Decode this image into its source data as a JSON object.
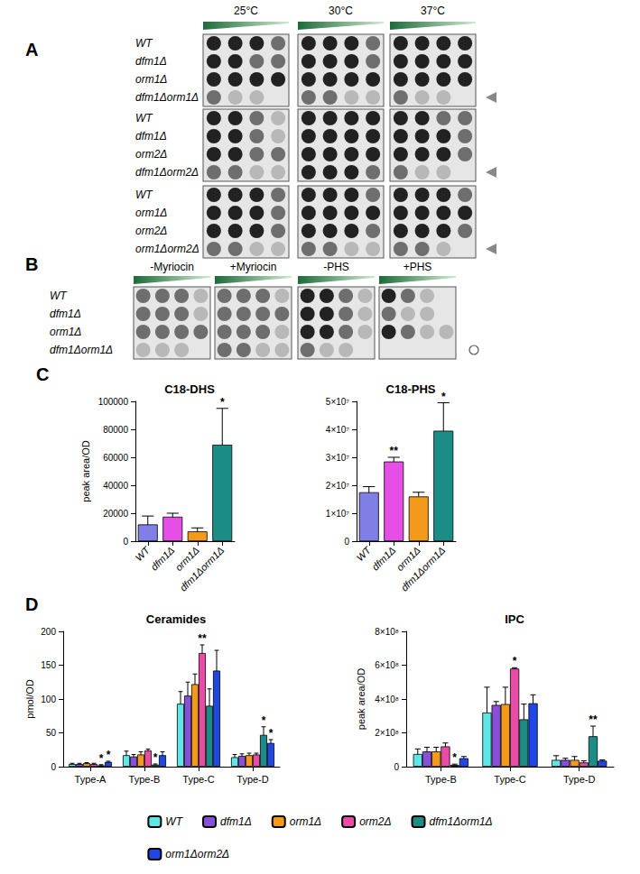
{
  "spot_assays": [
    {
      "panel": "A",
      "columns": [
        "25°C",
        "30°C",
        "37°C"
      ],
      "marker": "triangle",
      "blocks": [
        {
          "rows": [
            {
              "label": "WT",
              "growth": [
                [
                  3,
                  3,
                  3,
                  2
                ],
                [
                  3,
                  3,
                  3,
                  2
                ],
                [
                  3,
                  3,
                  3,
                  3
                ]
              ]
            },
            {
              "label": "dfm1Δ",
              "growth": [
                [
                  3,
                  3,
                  2,
                  2
                ],
                [
                  3,
                  3,
                  3,
                  2
                ],
                [
                  3,
                  3,
                  3,
                  3
                ]
              ]
            },
            {
              "label": "orm1Δ",
              "growth": [
                [
                  3,
                  3,
                  3,
                  3
                ],
                [
                  3,
                  3,
                  3,
                  3
                ],
                [
                  3,
                  3,
                  3,
                  3
                ]
              ]
            },
            {
              "label": "dfm1Δorm1Δ",
              "marked": true,
              "growth": [
                [
                  2,
                  1,
                  1,
                  0
                ],
                [
                  2,
                  2,
                  1,
                  1
                ],
                [
                  2,
                  1,
                  1,
                  0
                ]
              ]
            }
          ]
        },
        {
          "rows": [
            {
              "label": "WT",
              "growth": [
                [
                  3,
                  3,
                  2,
                  1
                ],
                [
                  3,
                  3,
                  3,
                  3
                ],
                [
                  3,
                  3,
                  2,
                  2
                ]
              ]
            },
            {
              "label": "dfm1Δ",
              "growth": [
                [
                  3,
                  3,
                  2,
                  1
                ],
                [
                  3,
                  3,
                  3,
                  3
                ],
                [
                  3,
                  3,
                  3,
                  2
                ]
              ]
            },
            {
              "label": "orm2Δ",
              "growth": [
                [
                  3,
                  3,
                  2,
                  2
                ],
                [
                  3,
                  3,
                  3,
                  3
                ],
                [
                  3,
                  3,
                  3,
                  2
                ]
              ]
            },
            {
              "label": "dfm1Δorm2Δ",
              "marked": true,
              "growth": [
                [
                  2,
                  2,
                  1,
                  1
                ],
                [
                  3,
                  3,
                  3,
                  2
                ],
                [
                  2,
                  1,
                  1,
                  0
                ]
              ]
            }
          ]
        },
        {
          "rows": [
            {
              "label": "WT",
              "growth": [
                [
                  3,
                  3,
                  3,
                  2
                ],
                [
                  3,
                  3,
                  3,
                  2
                ],
                [
                  3,
                  3,
                  3,
                  2
                ]
              ]
            },
            {
              "label": "orm1Δ",
              "growth": [
                [
                  3,
                  3,
                  3,
                  2
                ],
                [
                  3,
                  3,
                  3,
                  3
                ],
                [
                  3,
                  3,
                  3,
                  3
                ]
              ]
            },
            {
              "label": "orm2Δ",
              "growth": [
                [
                  3,
                  3,
                  3,
                  2
                ],
                [
                  3,
                  3,
                  3,
                  2
                ],
                [
                  3,
                  3,
                  3,
                  2
                ]
              ]
            },
            {
              "label": "orm1Δorm2Δ",
              "marked": true,
              "growth": [
                [
                  2,
                  2,
                  1,
                  1
                ],
                [
                  2,
                  2,
                  1,
                  1
                ],
                [
                  2,
                  2,
                  1,
                  0
                ]
              ]
            }
          ]
        }
      ]
    },
    {
      "panel": "B",
      "columns": [
        "-Myriocin",
        "+Myriocin",
        "-PHS",
        "+PHS"
      ],
      "marker": "circle",
      "blocks": [
        {
          "rows": [
            {
              "label": "WT",
              "growth": [
                [
                  2,
                  2,
                  2,
                  1
                ],
                [
                  2,
                  2,
                  2,
                  1
                ],
                [
                  3,
                  3,
                  2,
                  1
                ],
                [
                  3,
                  2,
                  1,
                  0
                ]
              ]
            },
            {
              "label": "dfm1Δ",
              "growth": [
                [
                  2,
                  2,
                  2,
                  1
                ],
                [
                  2,
                  2,
                  2,
                  2
                ],
                [
                  3,
                  3,
                  2,
                  1
                ],
                [
                  2,
                  1,
                  1,
                  0
                ]
              ]
            },
            {
              "label": "orm1Δ",
              "growth": [
                [
                  2,
                  2,
                  2,
                  2
                ],
                [
                  2,
                  2,
                  2,
                  1
                ],
                [
                  3,
                  3,
                  2,
                  1
                ],
                [
                  3,
                  2,
                  1,
                  1
                ]
              ]
            },
            {
              "label": "dfm1Δorm1Δ",
              "marked": true,
              "growth": [
                [
                  1,
                  1,
                  1,
                  0
                ],
                [
                  2,
                  2,
                  1,
                  1
                ],
                [
                  2,
                  1,
                  1,
                  0
                ],
                [
                  0,
                  0,
                  0,
                  0
                ]
              ]
            }
          ]
        }
      ]
    }
  ],
  "chart_data": [
    {
      "panel": "C",
      "type": "bar",
      "title": "C18-DHS",
      "ylabel": "peak area/OD",
      "categories": [
        "WT",
        "dfm1Δ",
        "orm1Δ",
        "dfm1Δorm1Δ"
      ],
      "values": [
        12000,
        17500,
        7000,
        69000
      ],
      "errors": [
        6000,
        2500,
        2500,
        26000
      ],
      "significance": [
        null,
        null,
        null,
        "*"
      ],
      "colors": [
        "#7f7fe6",
        "#e64fe6",
        "#f39a1b",
        "#1b8c86"
      ],
      "ylim": [
        0,
        100000
      ],
      "yticks": [
        0,
        20000,
        40000,
        60000,
        80000,
        100000
      ],
      "grid": false
    },
    {
      "type": "bar",
      "title": "C18-PHS",
      "categories": [
        "WT",
        "dfm1Δ",
        "orm1Δ",
        "dfm1Δorm1Δ"
      ],
      "values": [
        17500000,
        28500000,
        16000000,
        39500000
      ],
      "errors": [
        2000000,
        1500000,
        1500000,
        10000000
      ],
      "significance": [
        null,
        "**",
        null,
        "*"
      ],
      "colors": [
        "#7f7fe6",
        "#e64fe6",
        "#f39a1b",
        "#1b8c86"
      ],
      "ylim": [
        0,
        50000000
      ],
      "yticks": [
        0,
        {
          "value": 10000000,
          "label": "1×10⁷"
        },
        {
          "value": 20000000,
          "label": "2×10⁷"
        },
        {
          "value": 30000000,
          "label": "3×10⁷"
        },
        {
          "value": 40000000,
          "label": "4×10⁷"
        },
        {
          "value": 50000000,
          "label": "5×10⁷"
        }
      ],
      "grid": false
    },
    {
      "panel": "D",
      "type": "bar",
      "title": "Ceramides",
      "ylabel": "pmol/OD",
      "categories": [
        "Type-A",
        "Type-B",
        "Type-C",
        "Type-D"
      ],
      "series": [
        {
          "name": "WT",
          "color": "#5fe6e6",
          "values": [
            4,
            17,
            93,
            14
          ],
          "errors": [
            1,
            6,
            18,
            4
          ],
          "significance": [
            null,
            null,
            null,
            null
          ]
        },
        {
          "name": "dfm1Δ",
          "color": "#8a4fd8",
          "values": [
            4,
            15,
            105,
            16
          ],
          "errors": [
            1,
            3,
            20,
            3
          ],
          "significance": [
            null,
            null,
            null,
            null
          ]
        },
        {
          "name": "orm1Δ",
          "color": "#f39a1b",
          "values": [
            5,
            18,
            122,
            17
          ],
          "errors": [
            1,
            4,
            15,
            3
          ],
          "significance": [
            null,
            null,
            null,
            null
          ]
        },
        {
          "name": "orm2Δ",
          "color": "#e94ba6",
          "values": [
            4,
            24,
            168,
            18
          ],
          "errors": [
            1,
            2,
            12,
            2
          ],
          "significance": [
            null,
            null,
            "**",
            null
          ]
        },
        {
          "name": "dfm1Δorm1Δ",
          "color": "#1b8c86",
          "values": [
            2,
            3,
            90,
            47
          ],
          "errors": [
            1,
            1,
            25,
            12
          ],
          "significance": [
            "*",
            "*",
            null,
            "*"
          ]
        },
        {
          "name": "orm1Δorm2Δ",
          "color": "#2146e6",
          "values": [
            7,
            17,
            142,
            35
          ],
          "errors": [
            1,
            5,
            30,
            5
          ],
          "significance": [
            "*",
            null,
            null,
            "*"
          ]
        }
      ],
      "ylim": [
        0,
        200
      ],
      "yticks": [
        0,
        50,
        100,
        150,
        200
      ],
      "grid": false,
      "legend": "bottom"
    },
    {
      "type": "bar",
      "title": "IPC",
      "ylabel": "peak area/OD",
      "categories": [
        "Type-B",
        "Type-C",
        "Type-D"
      ],
      "series": [
        {
          "name": "WT",
          "color": "#5fe6e6",
          "values": [
            75000000,
            320000000,
            40000000
          ],
          "errors": [
            30000000,
            150000000,
            25000000
          ],
          "significance": [
            null,
            null,
            null
          ]
        },
        {
          "name": "dfm1Δ",
          "color": "#8a4fd8",
          "values": [
            90000000,
            365000000,
            40000000
          ],
          "errors": [
            25000000,
            20000000,
            10000000
          ],
          "significance": [
            null,
            null,
            null
          ]
        },
        {
          "name": "orm1Δ",
          "color": "#f39a1b",
          "values": [
            90000000,
            370000000,
            40000000
          ],
          "errors": [
            25000000,
            100000000,
            20000000
          ],
          "significance": [
            null,
            null,
            null
          ]
        },
        {
          "name": "orm2Δ",
          "color": "#e94ba6",
          "values": [
            120000000,
            580000000,
            25000000
          ],
          "errors": [
            20000000,
            5000000,
            10000000
          ],
          "significance": [
            null,
            "*",
            null
          ]
        },
        {
          "name": "dfm1Δorm1Δ",
          "color": "#1b8c86",
          "values": [
            10000000,
            280000000,
            180000000
          ],
          "errors": [
            5000000,
            90000000,
            60000000
          ],
          "significance": [
            "*",
            null,
            "**"
          ]
        },
        {
          "name": "orm1Δorm2Δ",
          "color": "#2146e6",
          "values": [
            50000000,
            375000000,
            35000000
          ],
          "errors": [
            10000000,
            50000000,
            5000000
          ],
          "significance": [
            null,
            null,
            null
          ]
        }
      ],
      "ylim": [
        0,
        800000000
      ],
      "yticks": [
        0,
        {
          "value": 200000000,
          "label": "2×10⁸"
        },
        {
          "value": 400000000,
          "label": "4×10⁸"
        },
        {
          "value": 600000000,
          "label": "6×10⁸"
        },
        {
          "value": 800000000,
          "label": "8×10⁸"
        }
      ],
      "grid": false
    }
  ]
}
